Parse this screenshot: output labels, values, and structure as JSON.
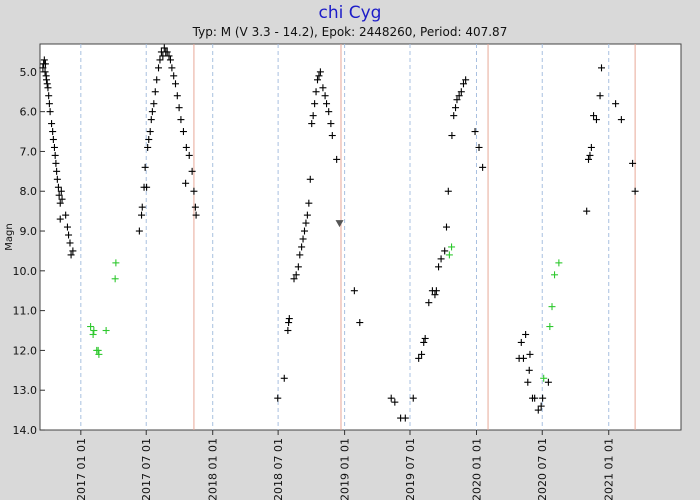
{
  "chart_data": {
    "type": "scatter",
    "title": "chi Cyg",
    "subtitle": "Typ: M (V 3.3 - 14.2), Epok: 2448260, Period: 407.87",
    "ylabel": "Magn",
    "ylim": [
      14.0,
      4.3
    ],
    "y_inverted": true,
    "yticks": [
      5.0,
      6.0,
      7.0,
      8.0,
      9.0,
      10.0,
      11.0,
      12.0,
      13.0,
      14.0
    ],
    "xlim": [
      "2016-09-10",
      "2021-07-20"
    ],
    "xticks": [
      "2017 01 01",
      "2017 07 01",
      "2018 01 01",
      "2018 07 01",
      "2019 01 01",
      "2019 07 01",
      "2020 01 01",
      "2020 07 01",
      "2021 01 01"
    ],
    "maxima_lines": [
      "2017-11-10",
      "2018-12-22",
      "2020-02-02",
      "2021-03-15"
    ],
    "grid": "dashed-vertical",
    "colors": {
      "visual": "#000000",
      "other": "#2ec82e",
      "limit": "#555555",
      "maxima_line": "#e8a898",
      "grid": "#a8c0e0",
      "title": "#1c1cc8"
    },
    "series": [
      {
        "marker": "plus",
        "color": "#000000",
        "points": [
          [
            "2016-09-18",
            4.9
          ],
          [
            "2016-09-20",
            4.8
          ],
          [
            "2016-09-22",
            4.7
          ],
          [
            "2016-09-24",
            5.0
          ],
          [
            "2016-09-25",
            4.8
          ],
          [
            "2016-09-27",
            5.1
          ],
          [
            "2016-09-28",
            5.2
          ],
          [
            "2016-09-30",
            5.3
          ],
          [
            "2016-10-02",
            5.4
          ],
          [
            "2016-10-04",
            5.6
          ],
          [
            "2016-10-06",
            5.8
          ],
          [
            "2016-10-08",
            6.0
          ],
          [
            "2016-10-12",
            6.3
          ],
          [
            "2016-10-15",
            6.5
          ],
          [
            "2016-10-17",
            6.7
          ],
          [
            "2016-10-20",
            6.9
          ],
          [
            "2016-10-22",
            7.1
          ],
          [
            "2016-10-24",
            7.3
          ],
          [
            "2016-10-26",
            7.5
          ],
          [
            "2016-10-28",
            7.7
          ],
          [
            "2016-10-31",
            7.9
          ],
          [
            "2016-11-02",
            8.1
          ],
          [
            "2016-11-05",
            8.3
          ],
          [
            "2016-11-08",
            8.0
          ],
          [
            "2016-11-10",
            8.2
          ],
          [
            "2016-11-05",
            8.7
          ],
          [
            "2016-11-20",
            8.6
          ],
          [
            "2016-11-25",
            8.9
          ],
          [
            "2016-11-28",
            9.1
          ],
          [
            "2016-12-02",
            9.3
          ],
          [
            "2016-12-05",
            9.6
          ],
          [
            "2016-12-10",
            9.5
          ],
          [
            "2017-06-12",
            9.0
          ],
          [
            "2017-06-18",
            8.6
          ],
          [
            "2017-06-20",
            8.4
          ],
          [
            "2017-06-25",
            7.9
          ],
          [
            "2017-06-28",
            7.4
          ],
          [
            "2017-07-02",
            7.9
          ],
          [
            "2017-07-05",
            6.9
          ],
          [
            "2017-07-08",
            6.7
          ],
          [
            "2017-07-12",
            6.5
          ],
          [
            "2017-07-15",
            6.2
          ],
          [
            "2017-07-18",
            6.0
          ],
          [
            "2017-07-22",
            5.8
          ],
          [
            "2017-07-26",
            5.5
          ],
          [
            "2017-07-30",
            5.2
          ],
          [
            "2017-08-04",
            4.9
          ],
          [
            "2017-08-08",
            4.7
          ],
          [
            "2017-08-12",
            4.5
          ],
          [
            "2017-08-16",
            4.6
          ],
          [
            "2017-08-20",
            4.4
          ],
          [
            "2017-08-24",
            4.5
          ],
          [
            "2017-08-28",
            4.5
          ],
          [
            "2017-09-02",
            4.6
          ],
          [
            "2017-09-06",
            4.7
          ],
          [
            "2017-09-10",
            4.9
          ],
          [
            "2017-09-15",
            5.1
          ],
          [
            "2017-09-20",
            5.3
          ],
          [
            "2017-09-25",
            5.6
          ],
          [
            "2017-09-30",
            5.9
          ],
          [
            "2017-10-05",
            6.2
          ],
          [
            "2017-10-12",
            6.5
          ],
          [
            "2017-10-20",
            6.9
          ],
          [
            "2017-10-28",
            7.1
          ],
          [
            "2017-10-18",
            7.8
          ],
          [
            "2017-11-05",
            7.5
          ],
          [
            "2017-11-10",
            8.0
          ],
          [
            "2017-11-14",
            8.4
          ],
          [
            "2017-11-16",
            8.6
          ],
          [
            "2018-06-30",
            13.2
          ],
          [
            "2018-07-18",
            12.7
          ],
          [
            "2018-07-28",
            11.5
          ],
          [
            "2018-07-30",
            11.3
          ],
          [
            "2018-08-01",
            11.2
          ],
          [
            "2018-08-14",
            10.2
          ],
          [
            "2018-08-20",
            10.1
          ],
          [
            "2018-08-26",
            9.9
          ],
          [
            "2018-08-30",
            9.6
          ],
          [
            "2018-09-04",
            9.4
          ],
          [
            "2018-09-08",
            9.2
          ],
          [
            "2018-09-12",
            9.0
          ],
          [
            "2018-09-16",
            8.8
          ],
          [
            "2018-09-20",
            8.6
          ],
          [
            "2018-09-24",
            8.3
          ],
          [
            "2018-09-28",
            7.7
          ],
          [
            "2018-10-02",
            6.3
          ],
          [
            "2018-10-06",
            6.1
          ],
          [
            "2018-10-10",
            5.8
          ],
          [
            "2018-10-14",
            5.5
          ],
          [
            "2018-10-18",
            5.2
          ],
          [
            "2018-10-22",
            5.1
          ],
          [
            "2018-10-26",
            5.0
          ],
          [
            "2018-11-02",
            5.4
          ],
          [
            "2018-11-08",
            5.6
          ],
          [
            "2018-11-12",
            5.8
          ],
          [
            "2018-11-18",
            6.0
          ],
          [
            "2018-11-24",
            6.3
          ],
          [
            "2018-11-28",
            6.6
          ],
          [
            "2018-12-10",
            7.2
          ],
          [
            "2019-01-28",
            10.5
          ],
          [
            "2019-02-12",
            11.3
          ],
          [
            "2019-05-10",
            13.2
          ],
          [
            "2019-05-20",
            13.3
          ],
          [
            "2019-06-05",
            13.7
          ],
          [
            "2019-06-18",
            13.7
          ],
          [
            "2019-07-10",
            13.2
          ],
          [
            "2019-07-25",
            12.2
          ],
          [
            "2019-08-02",
            12.1
          ],
          [
            "2019-08-08",
            11.8
          ],
          [
            "2019-08-12",
            11.7
          ],
          [
            "2019-08-22",
            10.8
          ],
          [
            "2019-09-01",
            10.5
          ],
          [
            "2019-09-08",
            10.6
          ],
          [
            "2019-09-12",
            10.5
          ],
          [
            "2019-09-18",
            9.9
          ],
          [
            "2019-09-25",
            9.7
          ],
          [
            "2019-10-05",
            9.5
          ],
          [
            "2019-10-10",
            8.9
          ],
          [
            "2019-10-15",
            8.0
          ],
          [
            "2019-10-25",
            6.6
          ],
          [
            "2019-10-30",
            6.1
          ],
          [
            "2019-11-04",
            5.9
          ],
          [
            "2019-11-08",
            5.7
          ],
          [
            "2019-11-14",
            5.6
          ],
          [
            "2019-11-20",
            5.5
          ],
          [
            "2019-11-26",
            5.3
          ],
          [
            "2019-12-02",
            5.2
          ],
          [
            "2019-12-28",
            6.5
          ],
          [
            "2020-01-08",
            6.9
          ],
          [
            "2020-01-18",
            7.4
          ],
          [
            "2020-04-28",
            12.2
          ],
          [
            "2020-05-04",
            11.8
          ],
          [
            "2020-05-10",
            12.2
          ],
          [
            "2020-05-16",
            11.6
          ],
          [
            "2020-05-22",
            12.8
          ],
          [
            "2020-05-26",
            12.5
          ],
          [
            "2020-05-28",
            12.1
          ],
          [
            "2020-06-04",
            13.2
          ],
          [
            "2020-06-10",
            13.2
          ],
          [
            "2020-06-20",
            13.5
          ],
          [
            "2020-06-28",
            13.4
          ],
          [
            "2020-07-02",
            13.2
          ],
          [
            "2020-07-18",
            12.8
          ],
          [
            "2020-11-01",
            8.5
          ],
          [
            "2020-11-06",
            7.2
          ],
          [
            "2020-11-10",
            7.1
          ],
          [
            "2020-11-14",
            6.9
          ],
          [
            "2020-11-20",
            6.1
          ],
          [
            "2020-11-28",
            6.2
          ],
          [
            "2020-12-08",
            5.6
          ],
          [
            "2020-12-12",
            4.9
          ],
          [
            "2021-01-20",
            5.8
          ],
          [
            "2021-02-05",
            6.2
          ],
          [
            "2021-03-08",
            7.3
          ],
          [
            "2021-03-15",
            8.0
          ]
        ]
      },
      {
        "marker": "plus",
        "color": "#2ec82e",
        "points": [
          [
            "2017-01-28",
            11.4
          ],
          [
            "2017-02-04",
            11.6
          ],
          [
            "2017-02-06",
            11.5
          ],
          [
            "2017-02-14",
            12.0
          ],
          [
            "2017-02-20",
            12.1
          ],
          [
            "2017-02-18",
            12.0
          ],
          [
            "2017-03-12",
            11.5
          ],
          [
            "2017-04-06",
            10.2
          ],
          [
            "2017-04-08",
            9.8
          ],
          [
            "2019-10-18",
            9.6
          ],
          [
            "2019-10-24",
            9.4
          ],
          [
            "2020-07-05",
            12.7
          ],
          [
            "2020-07-22",
            11.4
          ],
          [
            "2020-07-28",
            10.9
          ],
          [
            "2020-08-04",
            10.1
          ],
          [
            "2020-08-16",
            9.8
          ]
        ]
      },
      {
        "marker": "triangle-down",
        "color": "#555555",
        "points": [
          [
            "2018-12-18",
            8.8
          ]
        ]
      }
    ]
  }
}
